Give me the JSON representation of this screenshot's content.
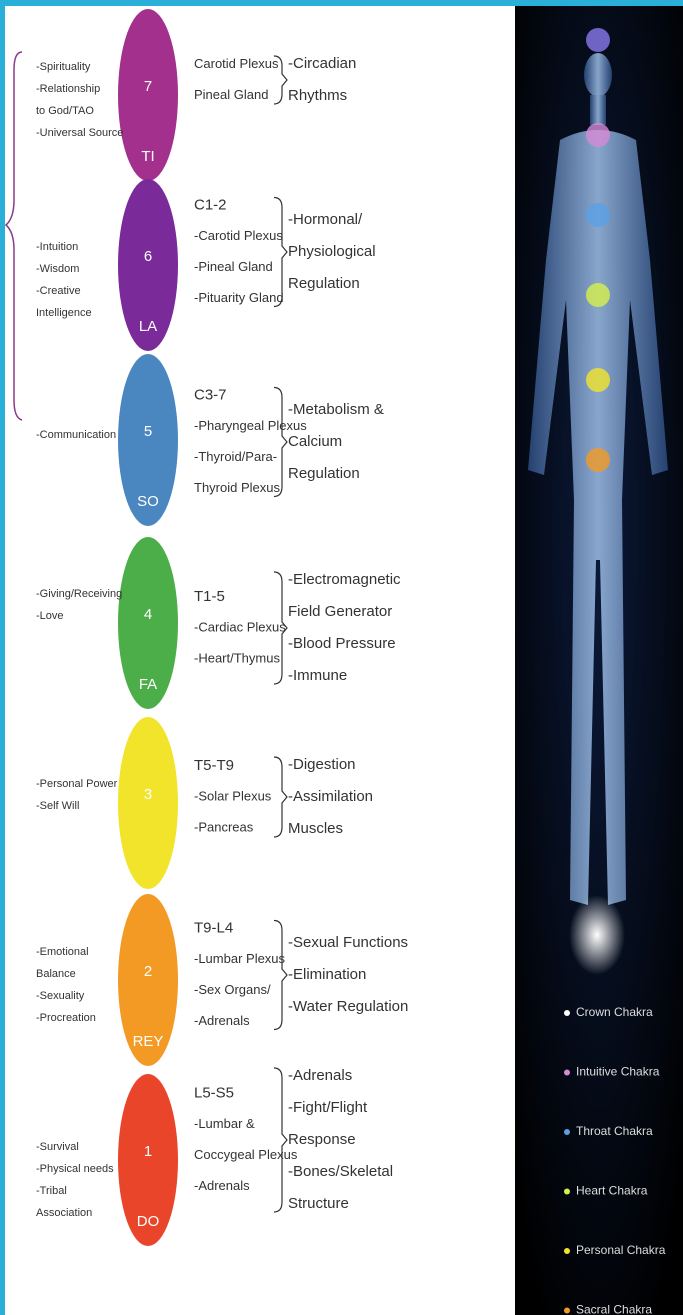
{
  "chakras": [
    {
      "number": "7",
      "note": "TI",
      "color": "#a2308c",
      "qualities": [
        "-Spirituality",
        "-Relationship",
        "to God/TAO",
        "-Universal Source"
      ],
      "nerves": [
        "Carotid Plexus",
        "Pineal Gland"
      ],
      "functions": [
        "-Circadian",
        "Rhythms"
      ]
    },
    {
      "number": "6",
      "note": "LA",
      "color": "#7b2a9a",
      "qualities": [
        "-Intuition",
        "-Wisdom",
        "-Creative",
        "Intelligence"
      ],
      "heading": "C1-2",
      "nerves": [
        "-Carotid Plexus",
        "-Pineal Gland",
        "-Pituarity Gland"
      ],
      "functions": [
        "-Hormonal/",
        "Physiological",
        "Regulation"
      ]
    },
    {
      "number": "5",
      "note": "SO",
      "color": "#4a86c0",
      "qualities": [
        "-Communication"
      ],
      "heading": "C3-7",
      "nerves": [
        "-Pharyngeal Plexus",
        "-Thyroid/Para-",
        "Thyroid Plexus"
      ],
      "functions": [
        "-Metabolism &",
        "Calcium",
        "Regulation"
      ]
    },
    {
      "number": "4",
      "note": "FA",
      "color": "#4cae48",
      "qualities": [
        "-Giving/Receiving",
        "-Love"
      ],
      "heading": "T1-5",
      "nerves": [
        "-Cardiac Plexus",
        "-Heart/Thymus"
      ],
      "functions": [
        "-Electromagnetic",
        "Field Generator",
        "-Blood Pressure",
        "-Immune"
      ]
    },
    {
      "number": "3",
      "color": "#f2e42a",
      "qualities": [
        "-Personal Power",
        "-Self Will"
      ],
      "heading": "T5-T9",
      "nerves": [
        "-Solar Plexus",
        "-Pancreas"
      ],
      "functions": [
        "-Digestion",
        "-Assimilation",
        "Muscles"
      ]
    },
    {
      "number": "2",
      "note": "REY",
      "color": "#f29a24",
      "qualities": [
        "-Emotional",
        "Balance",
        "-Sexuality",
        "-Procreation"
      ],
      "heading": "T9-L4",
      "nerves": [
        "-Lumbar Plexus",
        "-Sex Organs/",
        "-Adrenals"
      ],
      "functions": [
        "-Sexual Functions",
        "-Elimination",
        "-Water Regulation"
      ]
    },
    {
      "number": "1",
      "note": "DO",
      "color": "#e8452a",
      "qualities": [
        "-Survival",
        "-Physical needs",
        "-Tribal",
        "Association"
      ],
      "heading": "L5-S5",
      "nerves": [
        "-Lumbar &",
        "Coccygeal Plexus",
        "-Adrenals"
      ],
      "functions": [
        "-Adrenals",
        "-Fight/Flight",
        "Response",
        "-Bones/Skeletal",
        "Structure"
      ]
    }
  ],
  "legend": [
    {
      "label": "Crown Chakra",
      "color": "#ffffff"
    },
    {
      "label": "Intuitive Chakra",
      "color": "#d68ad6"
    },
    {
      "label": "Throat Chakra",
      "color": "#5aa0e6"
    },
    {
      "label": "Heart Chakra",
      "color": "#d6f04a"
    },
    {
      "label": "Personal Chakra",
      "color": "#f2e42a"
    },
    {
      "label": "Sacral Chakra",
      "color": "#f29a24"
    }
  ]
}
